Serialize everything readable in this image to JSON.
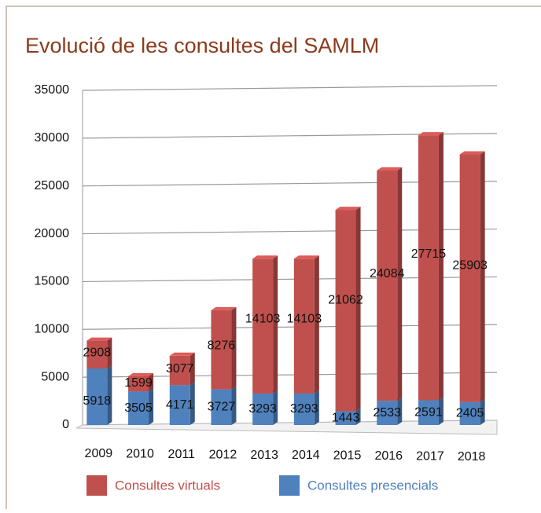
{
  "chart_data": {
    "type": "bar",
    "stacked": true,
    "title": "Evolució de les consultes del SAMLM",
    "categories": [
      "2009",
      "2010",
      "2011",
      "2012",
      "2013",
      "2014",
      "2015",
      "2016",
      "2017",
      "2018"
    ],
    "series": [
      {
        "name": "Consultes presencials",
        "color": "#4f81bd",
        "values": [
          5918,
          3505,
          4171,
          3727,
          3293,
          3293,
          1443,
          2533,
          2591,
          2405
        ]
      },
      {
        "name": "Consultes virtuals",
        "color": "#c0504d",
        "values": [
          2908,
          1599,
          3077,
          8276,
          14103,
          14103,
          21062,
          24084,
          27715,
          25903
        ]
      }
    ],
    "ylim": [
      0,
      35000
    ],
    "yticks": [
      0,
      5000,
      10000,
      15000,
      20000,
      25000,
      30000,
      35000
    ],
    "grid": true
  }
}
